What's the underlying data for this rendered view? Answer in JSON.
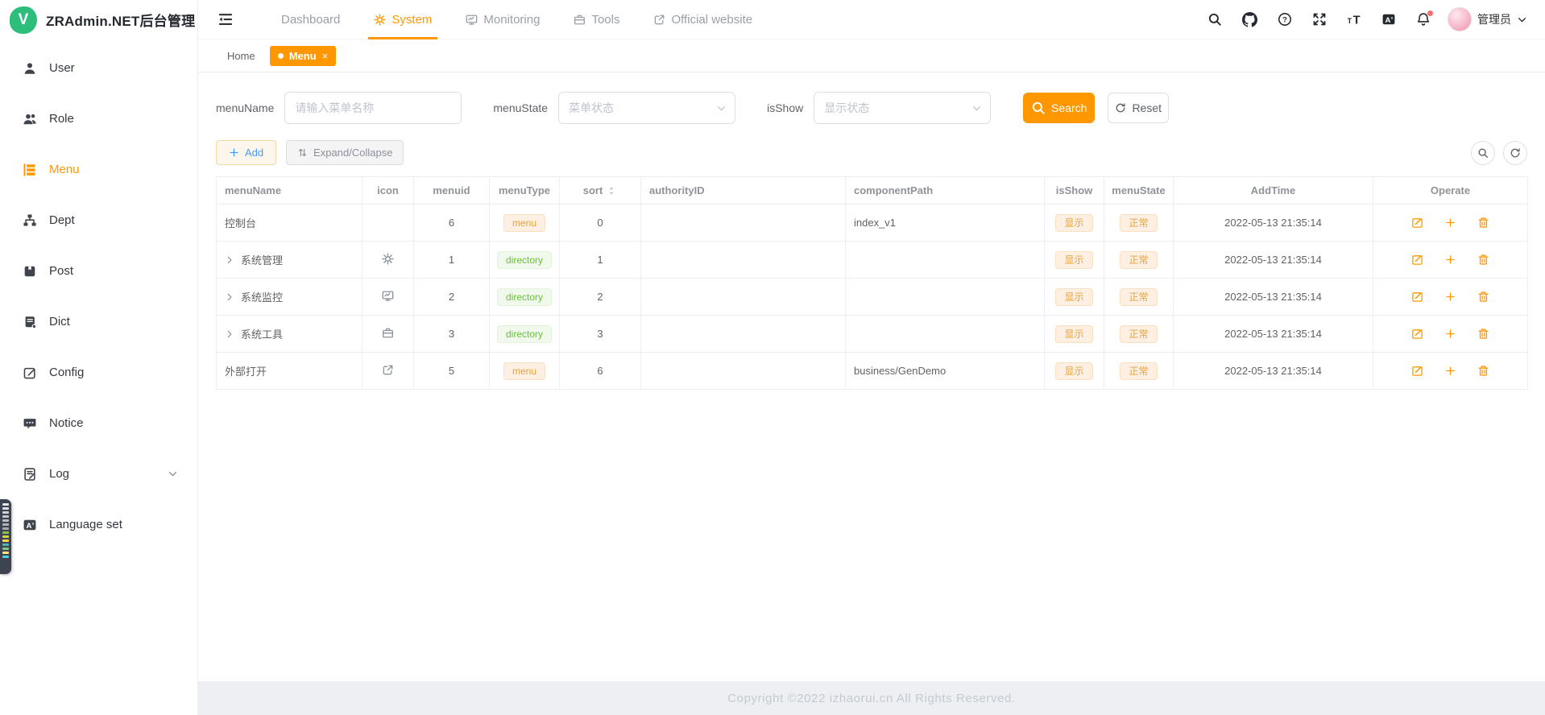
{
  "app": {
    "title": "ZRAdmin.NET后台管理",
    "logo_letter": "V"
  },
  "top_nav": {
    "items": [
      {
        "label": "Dashboard",
        "icon": null,
        "active": false
      },
      {
        "label": "System",
        "icon": "gear",
        "active": true
      },
      {
        "label": "Monitoring",
        "icon": "monitor",
        "active": false
      },
      {
        "label": "Tools",
        "icon": "briefcase",
        "active": false
      },
      {
        "label": "Official website",
        "icon": "external-link",
        "active": false
      }
    ],
    "right_icons": [
      "search",
      "github",
      "help",
      "fullscreen",
      "font-size",
      "translate",
      "bell"
    ],
    "notification_dot": true,
    "username": "管理员"
  },
  "sidebar": {
    "items": [
      {
        "label": "User",
        "icon": "user",
        "active": false
      },
      {
        "label": "Role",
        "icon": "role",
        "active": false
      },
      {
        "label": "Menu",
        "icon": "menu-list",
        "active": true
      },
      {
        "label": "Dept",
        "icon": "dept",
        "active": false
      },
      {
        "label": "Post",
        "icon": "post",
        "active": false
      },
      {
        "label": "Dict",
        "icon": "dict",
        "active": false
      },
      {
        "label": "Config",
        "icon": "config",
        "active": false
      },
      {
        "label": "Notice",
        "icon": "notice",
        "active": false
      },
      {
        "label": "Log",
        "icon": "log",
        "active": false,
        "has_children": true
      },
      {
        "label": "Language set",
        "icon": "language",
        "active": false
      }
    ]
  },
  "tabs": [
    {
      "label": "Home",
      "active": false,
      "closable": false
    },
    {
      "label": "Menu",
      "active": true,
      "closable": true
    }
  ],
  "filters": {
    "menu_name": {
      "label": "menuName",
      "placeholder": "请输入菜单名称",
      "value": ""
    },
    "menu_state": {
      "label": "menuState",
      "placeholder": "菜单状态"
    },
    "is_show": {
      "label": "isShow",
      "placeholder": "显示状态"
    },
    "search_label": "Search",
    "reset_label": "Reset"
  },
  "toolbar": {
    "add_label": "Add",
    "expand_label": "Expand/Collapse"
  },
  "table": {
    "columns": [
      "menuName",
      "icon",
      "menuid",
      "menuType",
      "sort",
      "authorityID",
      "componentPath",
      "isShow",
      "menuState",
      "AddTime",
      "Operate"
    ],
    "sortable_column": "sort",
    "rows": [
      {
        "menuName": "控制台",
        "expandable": false,
        "icon": null,
        "menuid": "6",
        "menuType": "menu",
        "menuTypeStyle": "warning",
        "sort": "0",
        "authorityID": "",
        "componentPath": "index_v1",
        "isShow": "显示",
        "menuState": "正常",
        "addTime": "2022-05-13 21:35:14"
      },
      {
        "menuName": "系统管理",
        "expandable": true,
        "icon": "gear",
        "menuid": "1",
        "menuType": "directory",
        "menuTypeStyle": "success",
        "sort": "1",
        "authorityID": "",
        "componentPath": "",
        "isShow": "显示",
        "menuState": "正常",
        "addTime": "2022-05-13 21:35:14"
      },
      {
        "menuName": "系统监控",
        "expandable": true,
        "icon": "monitor",
        "menuid": "2",
        "menuType": "directory",
        "menuTypeStyle": "success",
        "sort": "2",
        "authorityID": "",
        "componentPath": "",
        "isShow": "显示",
        "menuState": "正常",
        "addTime": "2022-05-13 21:35:14"
      },
      {
        "menuName": "系统工具",
        "expandable": true,
        "icon": "briefcase",
        "menuid": "3",
        "menuType": "directory",
        "menuTypeStyle": "success",
        "sort": "3",
        "authorityID": "",
        "componentPath": "",
        "isShow": "显示",
        "menuState": "正常",
        "addTime": "2022-05-13 21:35:14"
      },
      {
        "menuName": "外部打开",
        "expandable": false,
        "icon": "external-link",
        "menuid": "5",
        "menuType": "menu",
        "menuTypeStyle": "warning",
        "sort": "6",
        "authorityID": "",
        "componentPath": "business/GenDemo",
        "isShow": "显示",
        "menuState": "正常",
        "addTime": "2022-05-13 21:35:14"
      }
    ],
    "operate_icons": [
      "edit",
      "plus",
      "trash"
    ]
  },
  "footer": {
    "copyright": "Copyright ©2022 izhaorui.cn All Rights Reserved."
  },
  "colors": {
    "accent": "#ff9800",
    "warning_text": "#e6a23c",
    "success_text": "#67c23a",
    "logo_green": "#2ebe7b"
  }
}
